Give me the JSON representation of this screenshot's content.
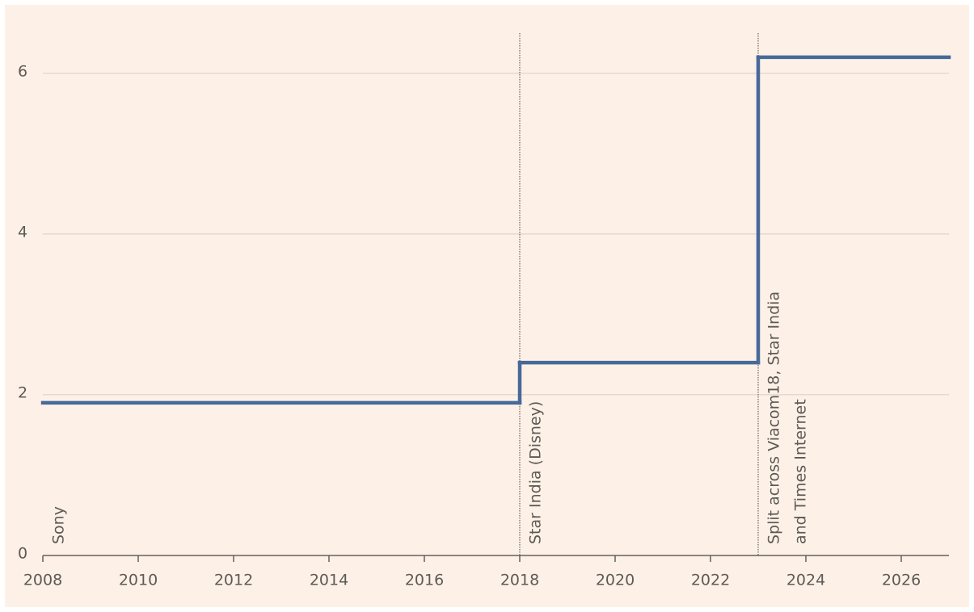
{
  "chart_data": {
    "type": "step",
    "x": [
      2008,
      2018,
      2023
    ],
    "series": [
      {
        "color": "#46699a",
        "values": [
          1.9,
          2.4,
          6.2
        ]
      }
    ],
    "xlim": [
      2008,
      2027
    ],
    "xticks": [
      2008,
      2010,
      2012,
      2014,
      2016,
      2018,
      2020,
      2022,
      2024,
      2026
    ],
    "ylim": [
      0,
      6.5
    ],
    "yticks": [
      0,
      2,
      4,
      6
    ],
    "grid": true,
    "annotations": [
      {
        "x": 2008,
        "lines": [
          "Sony"
        ],
        "vline": false
      },
      {
        "x": 2018,
        "lines": [
          "Star India (Disney)"
        ],
        "vline": true
      },
      {
        "x": 2023,
        "lines": [
          "Split across Viacom18, Star India",
          "and Times Internet"
        ],
        "vline": true
      }
    ]
  }
}
